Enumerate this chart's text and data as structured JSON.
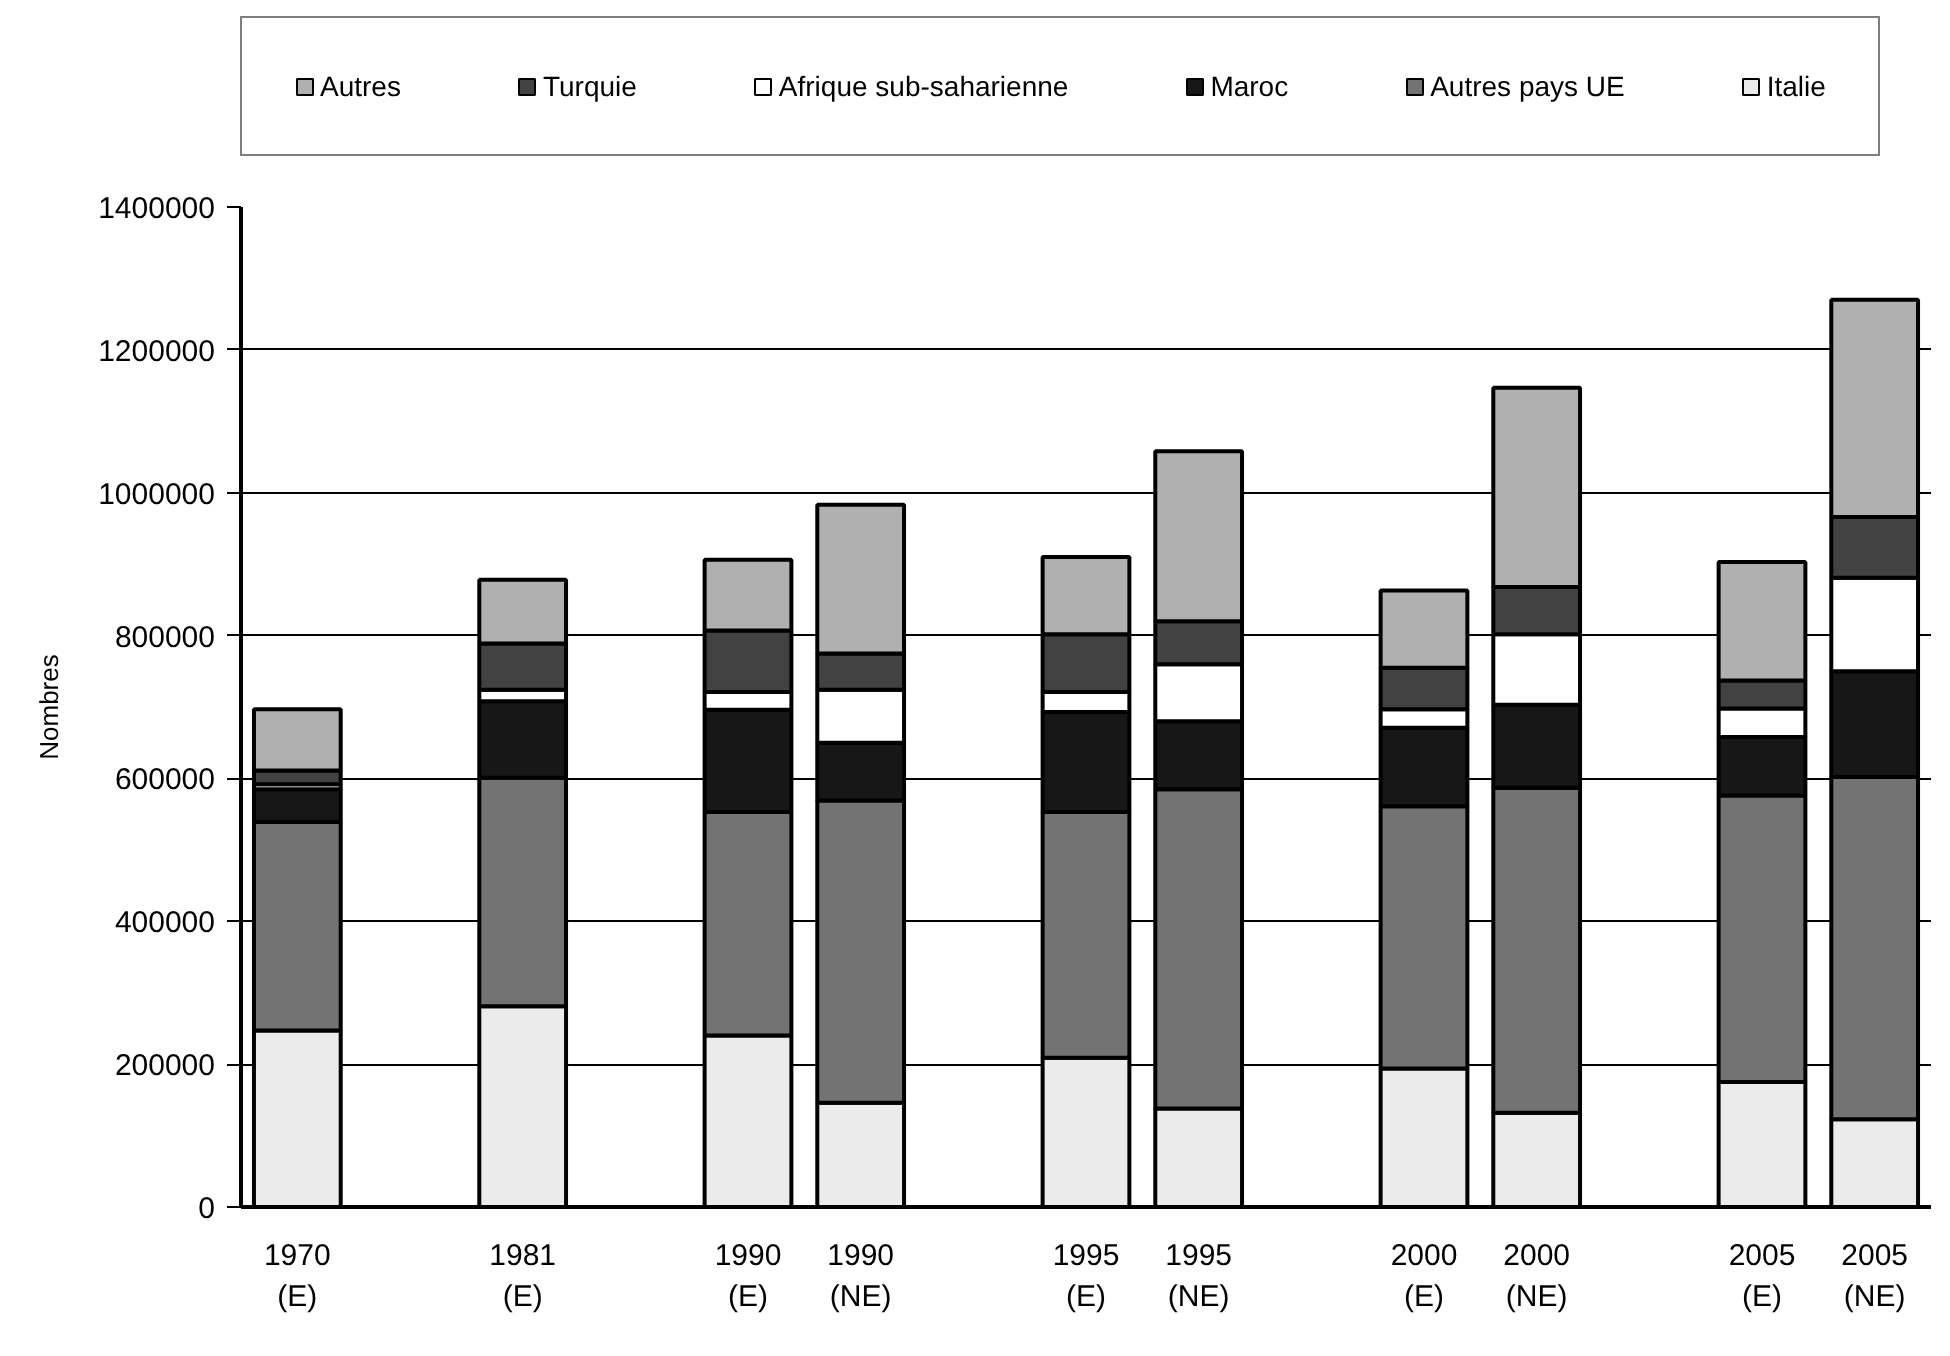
{
  "chart_data": {
    "type": "bar",
    "stacked": true,
    "ylabel": "Nombres",
    "categories": [
      "1970\n(E)",
      null,
      "1981\n(E)",
      null,
      "1990\n(E)",
      "1990\n(NE)",
      null,
      "1995\n(E)",
      "1995\n(NE)",
      null,
      "2000\n(E)",
      "2000\n(NE)",
      null,
      "2005\n(E)",
      "2005\n(NE)"
    ],
    "series": [
      {
        "name": "Italie",
        "color": "#ebebeb",
        "values": [
          247000,
          null,
          281000,
          null,
          240000,
          146000,
          null,
          209000,
          138000,
          null,
          194000,
          132000,
          null,
          175000,
          123000
        ]
      },
      {
        "name": "Autres pays UE",
        "color": "#737373",
        "values": [
          292000,
          null,
          320000,
          null,
          313000,
          423000,
          null,
          344000,
          447000,
          null,
          367000,
          455000,
          null,
          401000,
          479000
        ]
      },
      {
        "name": "Maroc",
        "color": "#171717",
        "values": [
          46000,
          null,
          107000,
          null,
          143000,
          81000,
          null,
          140000,
          95000,
          null,
          110000,
          116000,
          null,
          82000,
          148000
        ]
      },
      {
        "name": "Afrique sub-saharienne",
        "color": "#ffffff",
        "values": [
          7000,
          null,
          16000,
          null,
          25000,
          74000,
          null,
          28000,
          80000,
          null,
          26000,
          99000,
          null,
          40000,
          131000
        ]
      },
      {
        "name": "Turquie",
        "color": "#424242",
        "values": [
          19000,
          null,
          65000,
          null,
          86000,
          51000,
          null,
          81000,
          60000,
          null,
          58000,
          66000,
          null,
          39000,
          85000
        ]
      },
      {
        "name": "Autres",
        "color": "#b0b0b0",
        "values": [
          86000,
          null,
          89000,
          null,
          99000,
          208000,
          null,
          108000,
          238000,
          null,
          108000,
          279000,
          null,
          166000,
          304000
        ]
      }
    ],
    "ylim": [
      0,
      1400000
    ],
    "yticks": [
      0,
      200000,
      400000,
      600000,
      800000,
      1000000,
      1200000,
      1400000
    ],
    "grid": "y",
    "legend": "top"
  }
}
